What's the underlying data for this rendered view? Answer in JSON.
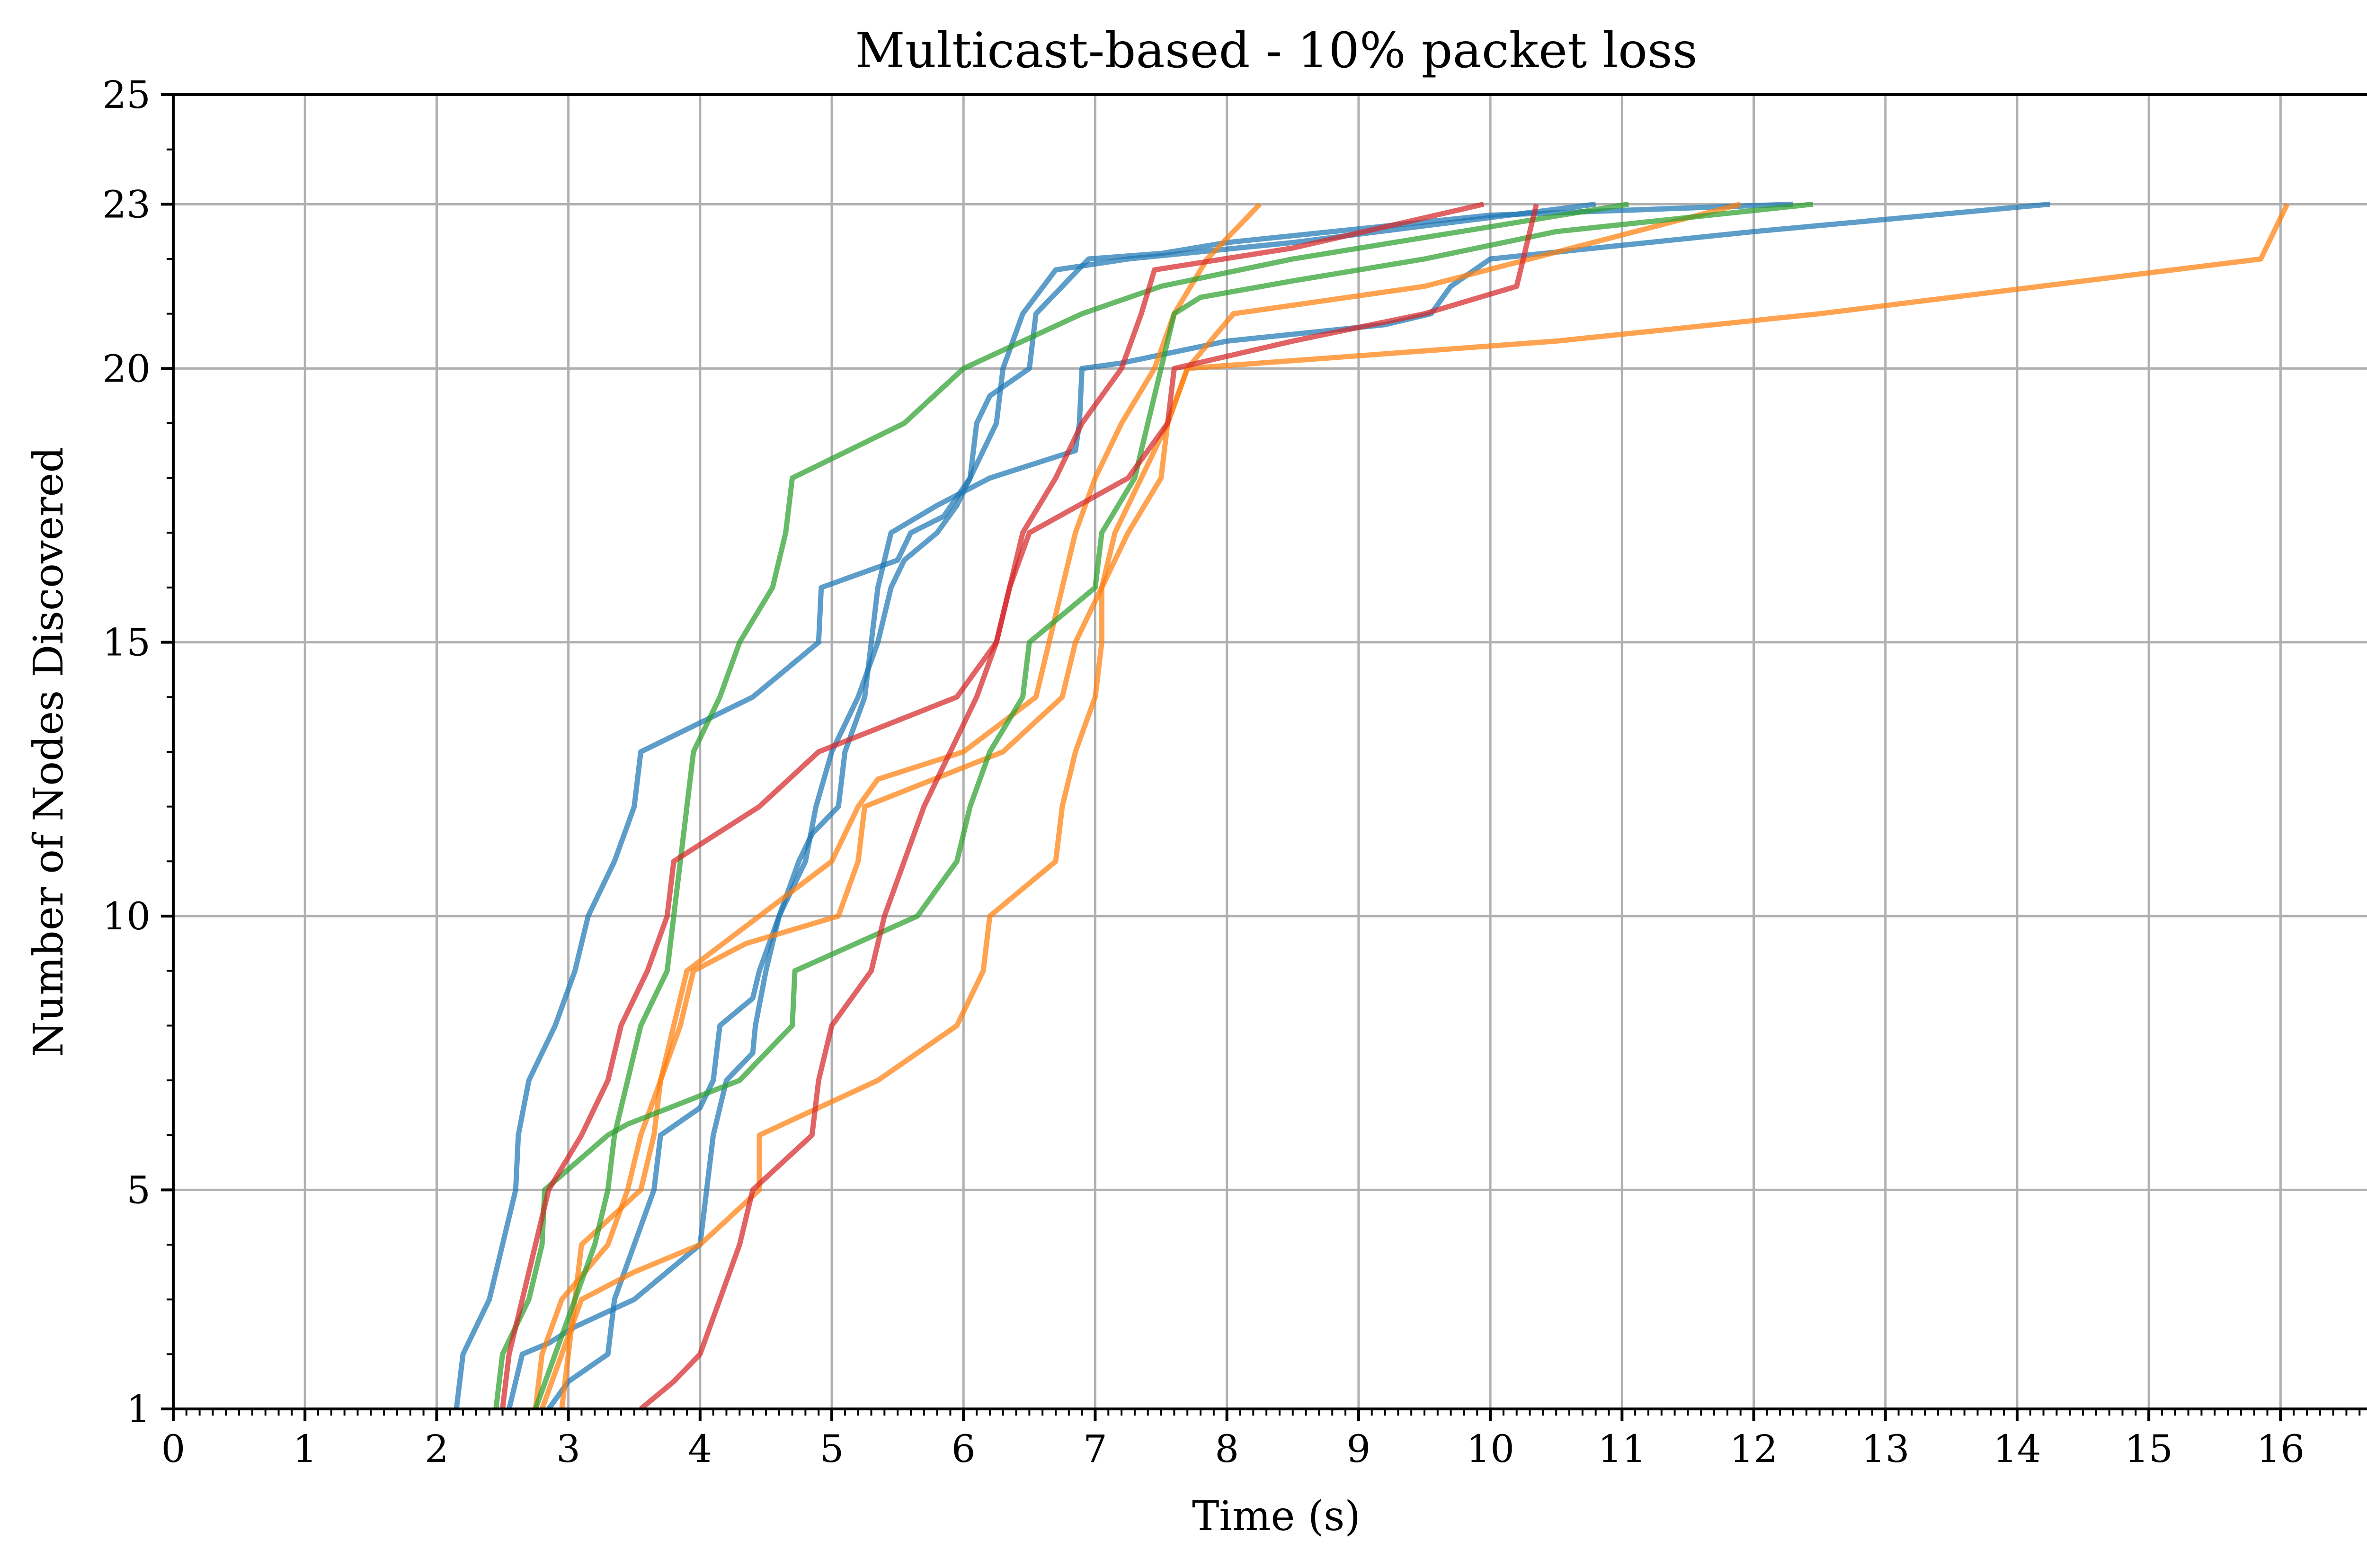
{
  "chart_data": {
    "type": "line",
    "title": "Multicast-based - 10% packet loss",
    "xlabel": "Time (s)",
    "ylabel": "Number of Nodes Discovered",
    "xlim": [
      0,
      16.75
    ],
    "ylim": [
      1,
      25
    ],
    "xticks": [
      0,
      1,
      2,
      3,
      4,
      5,
      6,
      7,
      8,
      9,
      10,
      11,
      12,
      13,
      14,
      15,
      16
    ],
    "xtick_labels": [
      "0",
      "1",
      "2",
      "3",
      "4",
      "5",
      "6",
      "7",
      "8",
      "9",
      "10",
      "11",
      "12",
      "13",
      "14",
      "15",
      "16"
    ],
    "yticks": [
      1,
      5,
      10,
      15,
      20,
      23,
      25
    ],
    "ytick_labels": [
      "1",
      "5",
      "10",
      "15",
      "20",
      "23",
      "25"
    ],
    "grid": true,
    "legend": "none",
    "series_colors": {
      "blue": "#1f77b4",
      "orange": "#ff7f0e",
      "green": "#2ca02c",
      "red": "#d62728"
    },
    "series": [
      {
        "color": "blue",
        "points": [
          [
            2.15,
            1
          ],
          [
            2.2,
            2
          ],
          [
            2.4,
            3
          ],
          [
            2.5,
            4
          ],
          [
            2.6,
            5
          ],
          [
            2.62,
            6
          ],
          [
            2.7,
            7
          ],
          [
            2.9,
            8
          ],
          [
            3.05,
            9
          ],
          [
            3.15,
            10
          ],
          [
            3.35,
            11
          ],
          [
            3.5,
            12
          ],
          [
            3.55,
            13
          ],
          [
            4.4,
            14
          ],
          [
            4.9,
            15
          ],
          [
            4.92,
            16
          ],
          [
            5.5,
            16.5
          ],
          [
            5.6,
            17
          ],
          [
            5.85,
            17.3
          ],
          [
            6.05,
            18
          ],
          [
            6.25,
            19
          ],
          [
            6.3,
            20
          ],
          [
            6.45,
            21
          ],
          [
            6.7,
            21.8
          ],
          [
            7.25,
            22
          ],
          [
            8.5,
            22.3
          ],
          [
            10.8,
            23
          ]
        ]
      },
      {
        "color": "blue",
        "points": [
          [
            2.55,
            1
          ],
          [
            2.65,
            2
          ],
          [
            2.85,
            2.2
          ],
          [
            3.05,
            2.5
          ],
          [
            3.5,
            3
          ],
          [
            4.0,
            4
          ],
          [
            4.05,
            5
          ],
          [
            4.1,
            6
          ],
          [
            4.2,
            7
          ],
          [
            4.4,
            7.5
          ],
          [
            4.42,
            8
          ],
          [
            4.5,
            9
          ],
          [
            4.6,
            10
          ],
          [
            4.8,
            11
          ],
          [
            4.88,
            12
          ],
          [
            5.0,
            13
          ],
          [
            5.2,
            14
          ],
          [
            5.35,
            15
          ],
          [
            5.45,
            16
          ],
          [
            5.55,
            16.5
          ],
          [
            5.8,
            17
          ],
          [
            5.95,
            17.5
          ],
          [
            6.05,
            18
          ],
          [
            6.1,
            19
          ],
          [
            6.2,
            19.5
          ],
          [
            6.5,
            20
          ],
          [
            6.55,
            21
          ],
          [
            6.95,
            22
          ],
          [
            7.5,
            22.1
          ],
          [
            8.0,
            22.3
          ],
          [
            10.0,
            22.8
          ],
          [
            12.3,
            23
          ]
        ]
      },
      {
        "color": "blue",
        "points": [
          [
            2.85,
            1
          ],
          [
            3.0,
            1.5
          ],
          [
            3.3,
            2
          ],
          [
            3.35,
            3
          ],
          [
            3.5,
            4
          ],
          [
            3.65,
            5
          ],
          [
            3.7,
            6
          ],
          [
            4.0,
            6.5
          ],
          [
            4.1,
            7
          ],
          [
            4.15,
            8
          ],
          [
            4.4,
            8.5
          ],
          [
            4.45,
            9
          ],
          [
            4.6,
            10
          ],
          [
            4.75,
            11
          ],
          [
            4.85,
            11.5
          ],
          [
            5.05,
            12
          ],
          [
            5.1,
            13
          ],
          [
            5.25,
            14
          ],
          [
            5.3,
            15
          ],
          [
            5.35,
            16
          ],
          [
            5.45,
            17
          ],
          [
            5.8,
            17.5
          ],
          [
            6.2,
            18
          ],
          [
            6.85,
            18.5
          ],
          [
            6.88,
            19
          ],
          [
            6.9,
            20
          ],
          [
            7.2,
            20.1
          ],
          [
            8.0,
            20.5
          ],
          [
            9.2,
            20.8
          ],
          [
            9.55,
            21
          ],
          [
            9.7,
            21.5
          ],
          [
            10.0,
            22
          ],
          [
            12.0,
            22.5
          ],
          [
            14.25,
            23
          ]
        ]
      },
      {
        "color": "orange",
        "points": [
          [
            2.95,
            1
          ],
          [
            3.0,
            2
          ],
          [
            3.05,
            3
          ],
          [
            3.1,
            4
          ],
          [
            3.55,
            5
          ],
          [
            3.65,
            6
          ],
          [
            3.7,
            7
          ],
          [
            3.8,
            8
          ],
          [
            3.9,
            9
          ],
          [
            4.45,
            10
          ],
          [
            5.0,
            11
          ],
          [
            5.2,
            12
          ],
          [
            5.35,
            12.5
          ],
          [
            6.0,
            13
          ],
          [
            6.55,
            14
          ],
          [
            6.65,
            15
          ],
          [
            6.75,
            16
          ],
          [
            6.85,
            17
          ],
          [
            7.0,
            18
          ],
          [
            7.2,
            19
          ],
          [
            7.45,
            20
          ],
          [
            7.6,
            21
          ],
          [
            7.85,
            22
          ],
          [
            8.25,
            23
          ]
        ]
      },
      {
        "color": "orange",
        "points": [
          [
            2.75,
            1
          ],
          [
            2.8,
            2
          ],
          [
            2.95,
            3
          ],
          [
            3.3,
            4
          ],
          [
            3.45,
            5
          ],
          [
            3.55,
            6
          ],
          [
            3.7,
            7
          ],
          [
            3.85,
            8
          ],
          [
            3.95,
            9
          ],
          [
            4.35,
            9.5
          ],
          [
            5.05,
            10
          ],
          [
            5.2,
            11
          ],
          [
            5.25,
            12
          ],
          [
            6.3,
            13
          ],
          [
            6.75,
            14
          ],
          [
            6.85,
            15
          ],
          [
            7.05,
            16
          ],
          [
            7.15,
            17
          ],
          [
            7.35,
            18
          ],
          [
            7.55,
            19
          ],
          [
            7.7,
            20
          ],
          [
            8.05,
            21
          ],
          [
            9.5,
            21.5
          ],
          [
            11.9,
            23
          ]
        ]
      },
      {
        "color": "orange",
        "points": [
          [
            2.8,
            1
          ],
          [
            2.95,
            2
          ],
          [
            3.1,
            3
          ],
          [
            3.5,
            3.5
          ],
          [
            4.0,
            4
          ],
          [
            4.45,
            5
          ],
          [
            4.45,
            6
          ],
          [
            5.35,
            7
          ],
          [
            5.95,
            8
          ],
          [
            6.15,
            9
          ],
          [
            6.2,
            10
          ],
          [
            6.7,
            11
          ],
          [
            6.75,
            12
          ],
          [
            6.85,
            13
          ],
          [
            7.0,
            14
          ],
          [
            7.05,
            15
          ],
          [
            7.05,
            16
          ],
          [
            7.25,
            17
          ],
          [
            7.5,
            18
          ],
          [
            7.55,
            19
          ],
          [
            7.7,
            20
          ],
          [
            10.5,
            20.5
          ],
          [
            12.5,
            21
          ],
          [
            15.85,
            22
          ],
          [
            16.05,
            23
          ]
        ]
      },
      {
        "color": "green",
        "points": [
          [
            2.45,
            1
          ],
          [
            2.5,
            2
          ],
          [
            2.7,
            3
          ],
          [
            2.8,
            4
          ],
          [
            2.82,
            5
          ],
          [
            3.3,
            6
          ],
          [
            3.45,
            6.2
          ],
          [
            4.3,
            7
          ],
          [
            4.7,
            8
          ],
          [
            4.72,
            9
          ],
          [
            5.65,
            10
          ],
          [
            5.95,
            11
          ],
          [
            6.05,
            12
          ],
          [
            6.2,
            13
          ],
          [
            6.45,
            14
          ],
          [
            6.5,
            15
          ],
          [
            7.0,
            16
          ],
          [
            7.05,
            17
          ],
          [
            7.3,
            18
          ],
          [
            7.4,
            19
          ],
          [
            7.5,
            20
          ],
          [
            7.6,
            21
          ],
          [
            7.8,
            21.3
          ],
          [
            8.5,
            21.6
          ],
          [
            9.5,
            22
          ],
          [
            10.5,
            22.5
          ],
          [
            12.45,
            23
          ]
        ]
      },
      {
        "color": "green",
        "points": [
          [
            2.75,
            1
          ],
          [
            2.9,
            2
          ],
          [
            3.05,
            3
          ],
          [
            3.2,
            4
          ],
          [
            3.3,
            5
          ],
          [
            3.35,
            6
          ],
          [
            3.45,
            7
          ],
          [
            3.55,
            8
          ],
          [
            3.75,
            9
          ],
          [
            3.8,
            10
          ],
          [
            3.85,
            11
          ],
          [
            3.9,
            12
          ],
          [
            3.95,
            13
          ],
          [
            4.15,
            14
          ],
          [
            4.3,
            15
          ],
          [
            4.55,
            16
          ],
          [
            4.65,
            17
          ],
          [
            4.7,
            18
          ],
          [
            5.55,
            19
          ],
          [
            6.0,
            20
          ],
          [
            6.9,
            21
          ],
          [
            7.5,
            21.5
          ],
          [
            8.5,
            22
          ],
          [
            11.05,
            23
          ]
        ]
      },
      {
        "color": "red",
        "points": [
          [
            2.5,
            1
          ],
          [
            2.55,
            2
          ],
          [
            2.65,
            3
          ],
          [
            2.75,
            4
          ],
          [
            2.85,
            5
          ],
          [
            3.1,
            6
          ],
          [
            3.3,
            7
          ],
          [
            3.4,
            8
          ],
          [
            3.6,
            9
          ],
          [
            3.75,
            10
          ],
          [
            3.8,
            11
          ],
          [
            4.45,
            12
          ],
          [
            4.9,
            13
          ],
          [
            5.95,
            14
          ],
          [
            6.25,
            15
          ],
          [
            6.35,
            16
          ],
          [
            6.45,
            17
          ],
          [
            6.7,
            18
          ],
          [
            6.9,
            19
          ],
          [
            7.2,
            20
          ],
          [
            7.35,
            21
          ],
          [
            7.45,
            21.8
          ],
          [
            8.5,
            22.2
          ],
          [
            9.95,
            23
          ]
        ]
      },
      {
        "color": "red",
        "points": [
          [
            3.55,
            1
          ],
          [
            3.8,
            1.5
          ],
          [
            4.0,
            2
          ],
          [
            4.15,
            3
          ],
          [
            4.3,
            4
          ],
          [
            4.4,
            5
          ],
          [
            4.85,
            6
          ],
          [
            4.9,
            7
          ],
          [
            5.0,
            8
          ],
          [
            5.3,
            9
          ],
          [
            5.4,
            10
          ],
          [
            5.55,
            11
          ],
          [
            5.7,
            12
          ],
          [
            5.9,
            13
          ],
          [
            6.1,
            14
          ],
          [
            6.25,
            15
          ],
          [
            6.35,
            16
          ],
          [
            6.5,
            17
          ],
          [
            7.25,
            18
          ],
          [
            7.55,
            19
          ],
          [
            7.6,
            20
          ],
          [
            8.5,
            20.5
          ],
          [
            9.5,
            21
          ],
          [
            10.2,
            21.5
          ],
          [
            10.35,
            23
          ]
        ]
      }
    ]
  }
}
